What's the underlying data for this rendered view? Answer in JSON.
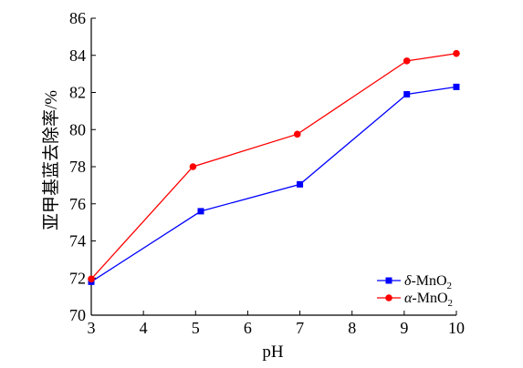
{
  "chart_data": {
    "type": "line",
    "title": "",
    "xlabel": "pH",
    "ylabel": "亚甲基蓝去除率/%",
    "x": [
      3,
      5,
      7,
      9,
      10
    ],
    "x_ticks": [
      3,
      4,
      5,
      6,
      7,
      8,
      9,
      10
    ],
    "y_ticks": [
      70,
      72,
      74,
      76,
      78,
      80,
      82,
      84,
      86
    ],
    "xlim": [
      3,
      10
    ],
    "ylim": [
      70,
      86
    ],
    "grid": false,
    "legend_position": "bottom-right",
    "series": [
      {
        "name": "δ-MnO2",
        "name_prefix": "δ",
        "name_main": "-MnO",
        "name_sub": "2",
        "x": [
          3.0,
          5.1,
          7.0,
          9.05,
          10.0
        ],
        "values": [
          71.8,
          75.6,
          77.05,
          81.9,
          82.3
        ],
        "color": "#0000ff",
        "marker": "square"
      },
      {
        "name": "α-MnO2",
        "name_prefix": "α",
        "name_main": "-MnO",
        "name_sub": "2",
        "x": [
          3.0,
          4.95,
          6.95,
          9.05,
          10.0
        ],
        "values": [
          71.95,
          78.0,
          79.75,
          83.7,
          84.1
        ],
        "color": "#ff0000",
        "marker": "circle"
      }
    ]
  }
}
